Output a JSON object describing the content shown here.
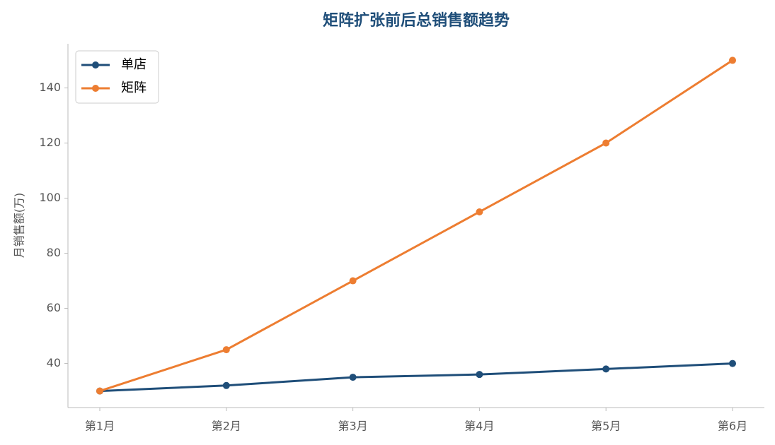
{
  "chart_data": {
    "type": "line",
    "title": "矩阵扩张前后总销售额趋势",
    "y_label": "月销售额(万)",
    "categories": [
      "第1月",
      "第2月",
      "第3月",
      "第4月",
      "第5月",
      "第6月"
    ],
    "series": [
      {
        "name": "单店",
        "color": "#1f4e79",
        "values": [
          30,
          32,
          35,
          36,
          38,
          40
        ]
      },
      {
        "name": "矩阵",
        "color": "#ed7d31",
        "values": [
          30,
          45,
          70,
          95,
          120,
          150
        ]
      }
    ],
    "ylim": [
      24,
      156
    ],
    "yticks": [
      40,
      60,
      80,
      100,
      120,
      140
    ],
    "legend": "upper left"
  }
}
